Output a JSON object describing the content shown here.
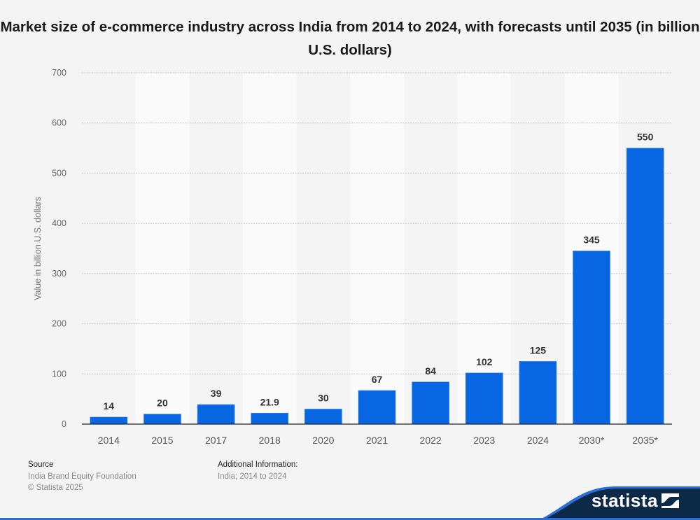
{
  "title": "Market size of e-commerce industry across India from 2014 to 2024, with forecasts until 2035 (in billion U.S. dollars)",
  "chart_data": {
    "type": "bar",
    "title": "Market size of e-commerce industry across India from 2014 to 2024, with forecasts until 2035 (in billion U.S. dollars)",
    "categories": [
      "2014",
      "2015",
      "2017",
      "2018",
      "2020",
      "2021",
      "2022",
      "2023",
      "2024",
      "2030*",
      "2035*"
    ],
    "values": [
      14,
      20,
      39,
      21.9,
      30,
      67,
      84,
      102,
      125,
      345,
      550
    ],
    "value_labels": [
      "14",
      "20",
      "39",
      "21.9",
      "30",
      "67",
      "84",
      "102",
      "125",
      "345",
      "550"
    ],
    "xlabel": "",
    "ylabel": "Value in billion U.S. dollars",
    "ylim": [
      0,
      700
    ],
    "yticks": [
      0,
      100,
      200,
      300,
      400,
      500,
      600,
      700
    ],
    "grid": true,
    "legend": "none",
    "bar_color": "#0866e3"
  },
  "footer": {
    "source_heading": "Source",
    "source_text": "India Brand Equity Foundation",
    "copyright": "© Statista 2025",
    "info_heading": "Additional Information:",
    "info_text": "India; 2014 to 2024"
  },
  "brand": {
    "name": "statista",
    "logo_icon": "statista-logo-icon",
    "bg_color": "#0c2a47",
    "accent_color": "#2a6fd6"
  }
}
